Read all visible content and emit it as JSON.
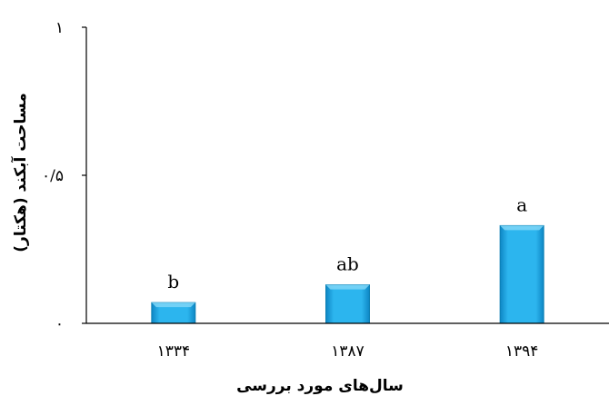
{
  "chart_data": {
    "type": "bar",
    "categories": [
      "۱۳۳۴",
      "۱۳۸۷",
      "۱۳۹۴"
    ],
    "values": [
      0.07,
      0.13,
      0.33
    ],
    "significance_labels": [
      "b",
      "ab",
      "a"
    ],
    "xlabel": "سال‌های مورد بررسی",
    "ylabel": "مساحت آبکند (هکتار)",
    "ylim": [
      0,
      1
    ],
    "yticks": [
      {
        "value": 0,
        "label": "۰"
      },
      {
        "value": 0.5,
        "label": "۰/۵"
      },
      {
        "value": 1,
        "label": "۱"
      }
    ],
    "bar_color": "#1aa7e3",
    "bar_edge_color": "#0b7fb3",
    "grid": false,
    "legend": "none"
  }
}
